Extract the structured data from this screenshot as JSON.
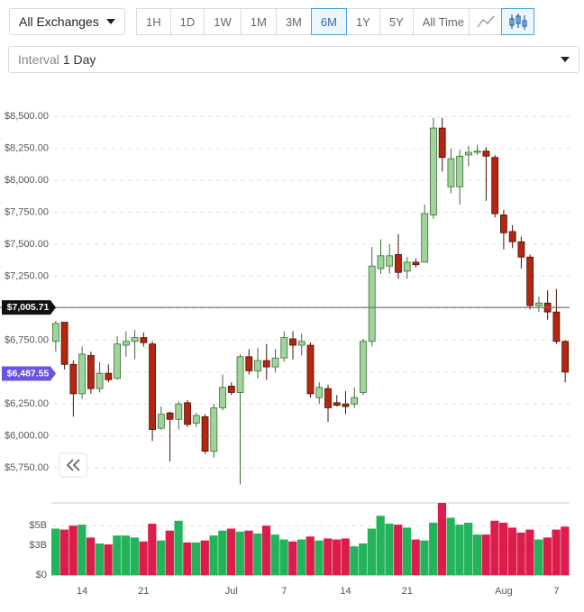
{
  "toolbar": {
    "exchange": "All Exchanges",
    "ranges": [
      "1H",
      "1D",
      "1W",
      "1M",
      "3M",
      "6M",
      "1Y",
      "5Y",
      "All Time"
    ],
    "active_range": 5,
    "interval_label": "Interval",
    "interval_value": "1 Day"
  },
  "chart_data": {
    "type": "candlestick",
    "categories": [
      null,
      null,
      null,
      "14",
      null,
      null,
      null,
      null,
      null,
      null,
      "21",
      null,
      null,
      null,
      null,
      null,
      null,
      null,
      null,
      null,
      "Jul",
      null,
      null,
      null,
      null,
      null,
      "7",
      null,
      null,
      null,
      null,
      null,
      null,
      "14",
      null,
      null,
      null,
      null,
      null,
      null,
      "21",
      null,
      null,
      null,
      null,
      null,
      null,
      null,
      null,
      null,
      null,
      "Aug",
      null,
      null,
      null,
      null,
      null,
      "7",
      null
    ],
    "open": [
      6740,
      6890,
      6560,
      6330,
      6630,
      6370,
      6490,
      6450,
      6710,
      6740,
      6770,
      6720,
      6060,
      6180,
      6130,
      6260,
      6100,
      6150,
      5880,
      6220,
      6390,
      6340,
      6620,
      6510,
      6590,
      6540,
      6610,
      6760,
      6710,
      6710,
      6300,
      6370,
      6260,
      6250,
      6250,
      6340,
      6740,
      7310,
      7330,
      7420,
      7290,
      7360,
      7360,
      7730,
      8410,
      7950,
      7950,
      8200,
      8220,
      8230,
      8180,
      7730,
      7600,
      7520,
      7400,
      7020,
      7040,
      6970,
      6740
    ],
    "high": [
      6900,
      6890,
      6590,
      6700,
      6660,
      6580,
      6560,
      6780,
      6820,
      6830,
      6810,
      6740,
      6230,
      6190,
      6270,
      6280,
      6180,
      6170,
      6250,
      6480,
      6420,
      6640,
      6680,
      6690,
      6720,
      6680,
      6820,
      6820,
      6800,
      6730,
      6420,
      6400,
      6320,
      6350,
      6380,
      6760,
      7480,
      7540,
      7500,
      7580,
      7400,
      7390,
      7810,
      8490,
      8490,
      8250,
      8240,
      8270,
      8280,
      8260,
      8200,
      7770,
      7650,
      7560,
      7420,
      7090,
      7140,
      7150,
      6750
    ],
    "low": [
      6660,
      6520,
      6150,
      6290,
      6330,
      6340,
      6420,
      6440,
      6620,
      6600,
      6700,
      5960,
      6050,
      5800,
      6050,
      6070,
      6070,
      5860,
      5830,
      6200,
      6320,
      5620,
      6480,
      6450,
      6440,
      6500,
      6580,
      6600,
      6630,
      6300,
      6250,
      6110,
      6230,
      6170,
      6220,
      6320,
      6700,
      7270,
      7270,
      7230,
      7230,
      7320,
      7360,
      7700,
      8070,
      7900,
      7810,
      8110,
      8200,
      7840,
      7710,
      7460,
      7470,
      7310,
      6990,
      6970,
      6910,
      6720,
      6420
    ],
    "close": [
      6880,
      6560,
      6330,
      6640,
      6370,
      6490,
      6440,
      6720,
      6740,
      6770,
      6730,
      6050,
      6170,
      6130,
      6250,
      6090,
      6160,
      5880,
      6220,
      6380,
      6340,
      6620,
      6510,
      6590,
      6540,
      6610,
      6770,
      6710,
      6740,
      6330,
      6380,
      6220,
      6240,
      6230,
      6300,
      6740,
      7330,
      7410,
      7410,
      7280,
      7360,
      7340,
      7740,
      8410,
      8180,
      8170,
      8190,
      8220,
      8230,
      8190,
      7740,
      7590,
      7520,
      7400,
      7020,
      7040,
      6970,
      6740,
      6500
    ],
    "volume": [
      4.7,
      4.6,
      5.0,
      5.1,
      3.8,
      3.2,
      3.1,
      4.0,
      4.0,
      3.8,
      3.4,
      5.2,
      3.5,
      4.5,
      5.5,
      3.3,
      3.3,
      3.5,
      4.0,
      4.5,
      4.7,
      4.4,
      4.5,
      4.2,
      5.0,
      4.1,
      3.6,
      3.4,
      3.6,
      3.9,
      3.5,
      3.7,
      3.6,
      3.7,
      2.9,
      3.2,
      4.7,
      6.0,
      5.2,
      5.1,
      4.8,
      3.6,
      3.5,
      5.3,
      7.3,
      5.8,
      5.1,
      5.3,
      4.1,
      4.1,
      5.5,
      5.3,
      4.8,
      4.3,
      4.6,
      3.6,
      3.8,
      4.6,
      4.9
    ],
    "up_color": "#9fd49a",
    "down_color": "#b3260f",
    "volume_up_color": "#22b35b",
    "volume_down_color": "#dc1c4b",
    "ylim": [
      5560,
      8580
    ],
    "yticks": [
      {
        "value": 5750,
        "label": "$5,750.00"
      },
      {
        "value": 6000,
        "label": "$6,000.00"
      },
      {
        "value": 6250,
        "label": "$6,250.00"
      },
      {
        "value": 6500,
        "label": "$6,500.00"
      },
      {
        "value": 6750,
        "label": "$6,750.00"
      },
      {
        "value": 7000,
        "label": "$7,000.00"
      },
      {
        "value": 7250,
        "label": "$7,250.00"
      },
      {
        "value": 7500,
        "label": "$7,500.00"
      },
      {
        "value": 7750,
        "label": "$7,750.00"
      },
      {
        "value": 8000,
        "label": "$8,000.00"
      },
      {
        "value": 8250,
        "label": "$8,250.00"
      },
      {
        "value": 8500,
        "label": "$8,500.00"
      }
    ],
    "volume_ylim": [
      0,
      7.3
    ],
    "volume_yticks": [
      {
        "value": 0,
        "label": "$0"
      },
      {
        "value": 3,
        "label": "$3B"
      },
      {
        "value": 5,
        "label": "$5B"
      }
    ],
    "price_lines": [
      {
        "value": 7005.71,
        "label": "$7,005.71",
        "color": "#111111",
        "line": true
      },
      {
        "value": 6487.55,
        "label": "$6,487.55",
        "color": "#6c52e0",
        "line": false
      }
    ],
    "grid": true
  }
}
